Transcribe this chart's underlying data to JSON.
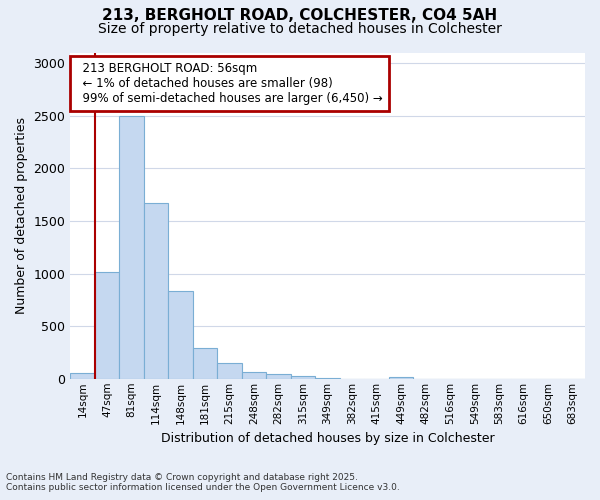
{
  "title_line1": "213, BERGHOLT ROAD, COLCHESTER, CO4 5AH",
  "title_line2": "Size of property relative to detached houses in Colchester",
  "xlabel": "Distribution of detached houses by size in Colchester",
  "ylabel": "Number of detached properties",
  "footnote1": "Contains HM Land Registry data © Crown copyright and database right 2025.",
  "footnote2": "Contains public sector information licensed under the Open Government Licence v3.0.",
  "annotation_title": "213 BERGHOLT ROAD: 56sqm",
  "annotation_line2": "← 1% of detached houses are smaller (98)",
  "annotation_line3": "99% of semi-detached houses are larger (6,450) →",
  "bar_labels": [
    "14sqm",
    "47sqm",
    "81sqm",
    "114sqm",
    "148sqm",
    "181sqm",
    "215sqm",
    "248sqm",
    "282sqm",
    "315sqm",
    "349sqm",
    "382sqm",
    "415sqm",
    "449sqm",
    "482sqm",
    "516sqm",
    "549sqm",
    "583sqm",
    "616sqm",
    "650sqm",
    "683sqm"
  ],
  "bar_values": [
    55,
    1010,
    2500,
    1670,
    830,
    295,
    150,
    60,
    50,
    30,
    10,
    0,
    0,
    20,
    0,
    0,
    0,
    0,
    0,
    0,
    0
  ],
  "bar_color": "#c5d8f0",
  "bar_edge_color": "#7aaed4",
  "vline_x": 1.0,
  "vline_color": "#aa0000",
  "annotation_box_color": "#aa0000",
  "ylim": [
    0,
    3100
  ],
  "yticks": [
    0,
    500,
    1000,
    1500,
    2000,
    2500,
    3000
  ],
  "plot_bg_color": "#ffffff",
  "fig_bg_color": "#e8eef8",
  "grid_color": "#d0d8e8",
  "title_fontsize": 11,
  "subtitle_fontsize": 10,
  "annotation_fontsize": 8.5
}
